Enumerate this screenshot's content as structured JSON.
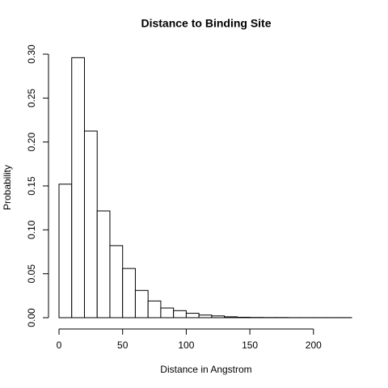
{
  "chart_data": {
    "type": "histogram",
    "title": "Distance to Binding Site",
    "x_label": "Distance in Angstrom",
    "y_label": "Probability",
    "bins": [
      0,
      10,
      20,
      30,
      40,
      50,
      60,
      70,
      80,
      90,
      100,
      110,
      120,
      130,
      140,
      150,
      160,
      170,
      180,
      190,
      200,
      210,
      220,
      230
    ],
    "values": [
      0.152,
      0.296,
      0.2125,
      0.1215,
      0.082,
      0.056,
      0.031,
      0.019,
      0.011,
      0.008,
      0.005,
      0.003,
      0.002,
      0.001,
      0.0005,
      0.0003,
      0.0002,
      0.0002,
      0.0001,
      0.0001,
      0.0001,
      0.0001,
      0.0001
    ],
    "color": "#ffffff",
    "xlim": [
      0,
      230
    ],
    "xticks": [
      0,
      50,
      100,
      150,
      200
    ],
    "ylim": [
      0,
      0.3
    ],
    "yticks": [
      {
        "value": 0,
        "label": "0.00"
      },
      {
        "value": 0.05,
        "label": "0.05"
      },
      {
        "value": 0.1,
        "label": "0.10"
      },
      {
        "value": 0.15,
        "label": "0.15"
      },
      {
        "value": 0.2,
        "label": "0.20"
      },
      {
        "value": 0.25,
        "label": "0.25"
      },
      {
        "value": 0.3,
        "label": "0.30"
      }
    ]
  }
}
